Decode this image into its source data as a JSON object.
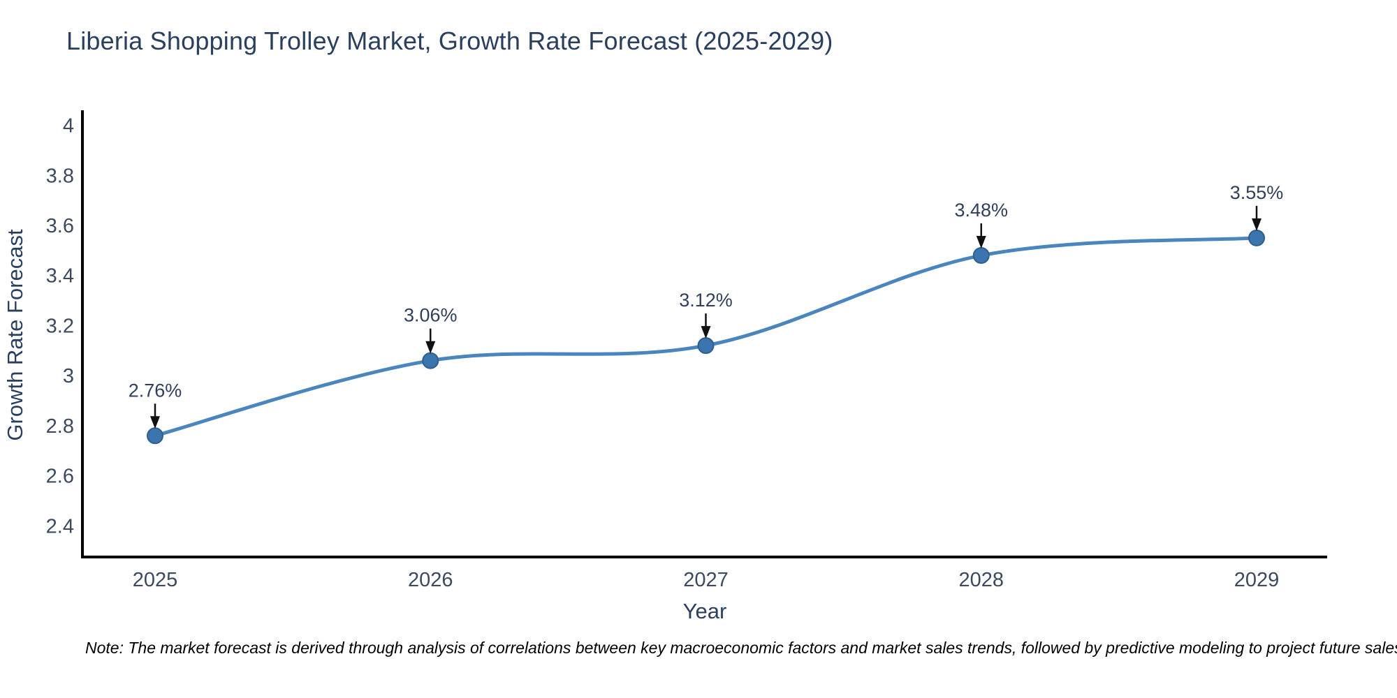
{
  "title": "Liberia Shopping Trolley Market, Growth Rate Forecast (2025-2029)",
  "note": "Note: The market forecast is derived through analysis of correlations between key macroeconomic factors and market sales trends, followed by predictive modeling to project future sales",
  "chart_data": {
    "type": "line",
    "line_shape": "spline",
    "title": "Liberia Shopping Trolley Market, Growth Rate Forecast (2025-2029)",
    "xlabel": "Year",
    "ylabel": "Growth Rate Forecast",
    "categories": [
      "2025",
      "2026",
      "2027",
      "2028",
      "2029"
    ],
    "x": [
      2025,
      2026,
      2027,
      2028,
      2029
    ],
    "values": [
      2.76,
      3.06,
      3.12,
      3.48,
      3.55
    ],
    "point_labels": [
      "2.76%",
      "3.06%",
      "3.12%",
      "3.48%",
      "3.55%"
    ],
    "yticks": [
      2.4,
      2.6,
      2.8,
      3,
      3.2,
      3.4,
      3.6,
      3.8,
      4
    ],
    "yticklabels": [
      "2.4",
      "2.6",
      "2.8",
      "3",
      "3.2",
      "3.4",
      "3.6",
      "3.8",
      "4"
    ],
    "ylim": [
      2.27,
      4.06
    ],
    "grid": false,
    "legend": false,
    "annotation_style": "black down-arrows pointing at each marker",
    "colors": {
      "line": "#4a85bd",
      "marker_fill": "#3c74ad",
      "marker_edge": "#2d5f92",
      "axis_line": "#000000",
      "title_text": "#2a3f5f",
      "tick_text": "#3b4a5f",
      "annotation_arrow": "#111111",
      "background": "#ffffff"
    }
  }
}
